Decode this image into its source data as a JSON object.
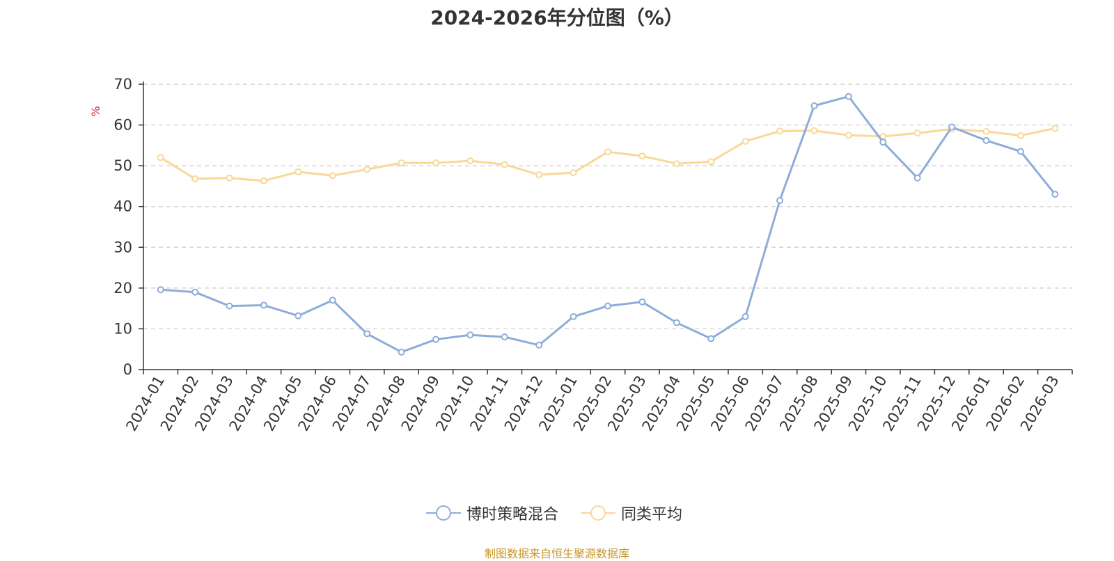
{
  "chart_data": {
    "type": "line",
    "title": "2024-2026年分位图（%）",
    "ylabel": "%",
    "xlabel": "",
    "ylim": [
      0,
      70
    ],
    "yticks": [
      0,
      10,
      20,
      30,
      40,
      50,
      60,
      70
    ],
    "grid": true,
    "legend_position": "bottom-center",
    "categories": [
      "2024-01",
      "2024-02",
      "2024-03",
      "2024-04",
      "2024-05",
      "2024-06",
      "2024-07",
      "2024-08",
      "2024-09",
      "2024-10",
      "2024-11",
      "2024-12",
      "2025-01",
      "2025-02",
      "2025-03",
      "2025-04",
      "2025-05",
      "2025-06",
      "2025-07",
      "2025-08",
      "2025-09",
      "2025-10",
      "2025-11",
      "2025-12",
      "2026-01",
      "2026-02",
      "2026-03"
    ],
    "series": [
      {
        "name": "博时策略混合",
        "color": "#8eacd9",
        "values": [
          19.6,
          19.0,
          15.6,
          15.8,
          13.2,
          17.0,
          8.8,
          4.3,
          7.4,
          8.5,
          8.0,
          6.0,
          13.0,
          15.6,
          16.6,
          11.5,
          7.6,
          13.0,
          41.5,
          64.7,
          67.0,
          55.8,
          47.0,
          59.5,
          56.2,
          53.5,
          43.0
        ]
      },
      {
        "name": "同类平均",
        "color": "#f9d898",
        "values": [
          52.0,
          46.8,
          47.0,
          46.3,
          48.5,
          47.6,
          49.1,
          50.7,
          50.7,
          51.2,
          50.3,
          47.8,
          48.3,
          53.4,
          52.4,
          50.5,
          51.0,
          56.0,
          58.5,
          58.6,
          57.5,
          57.2,
          58.0,
          59.0,
          58.4,
          57.4,
          59.2
        ]
      }
    ]
  },
  "footer": {
    "source": "制图数据来自恒生聚源数据库"
  }
}
